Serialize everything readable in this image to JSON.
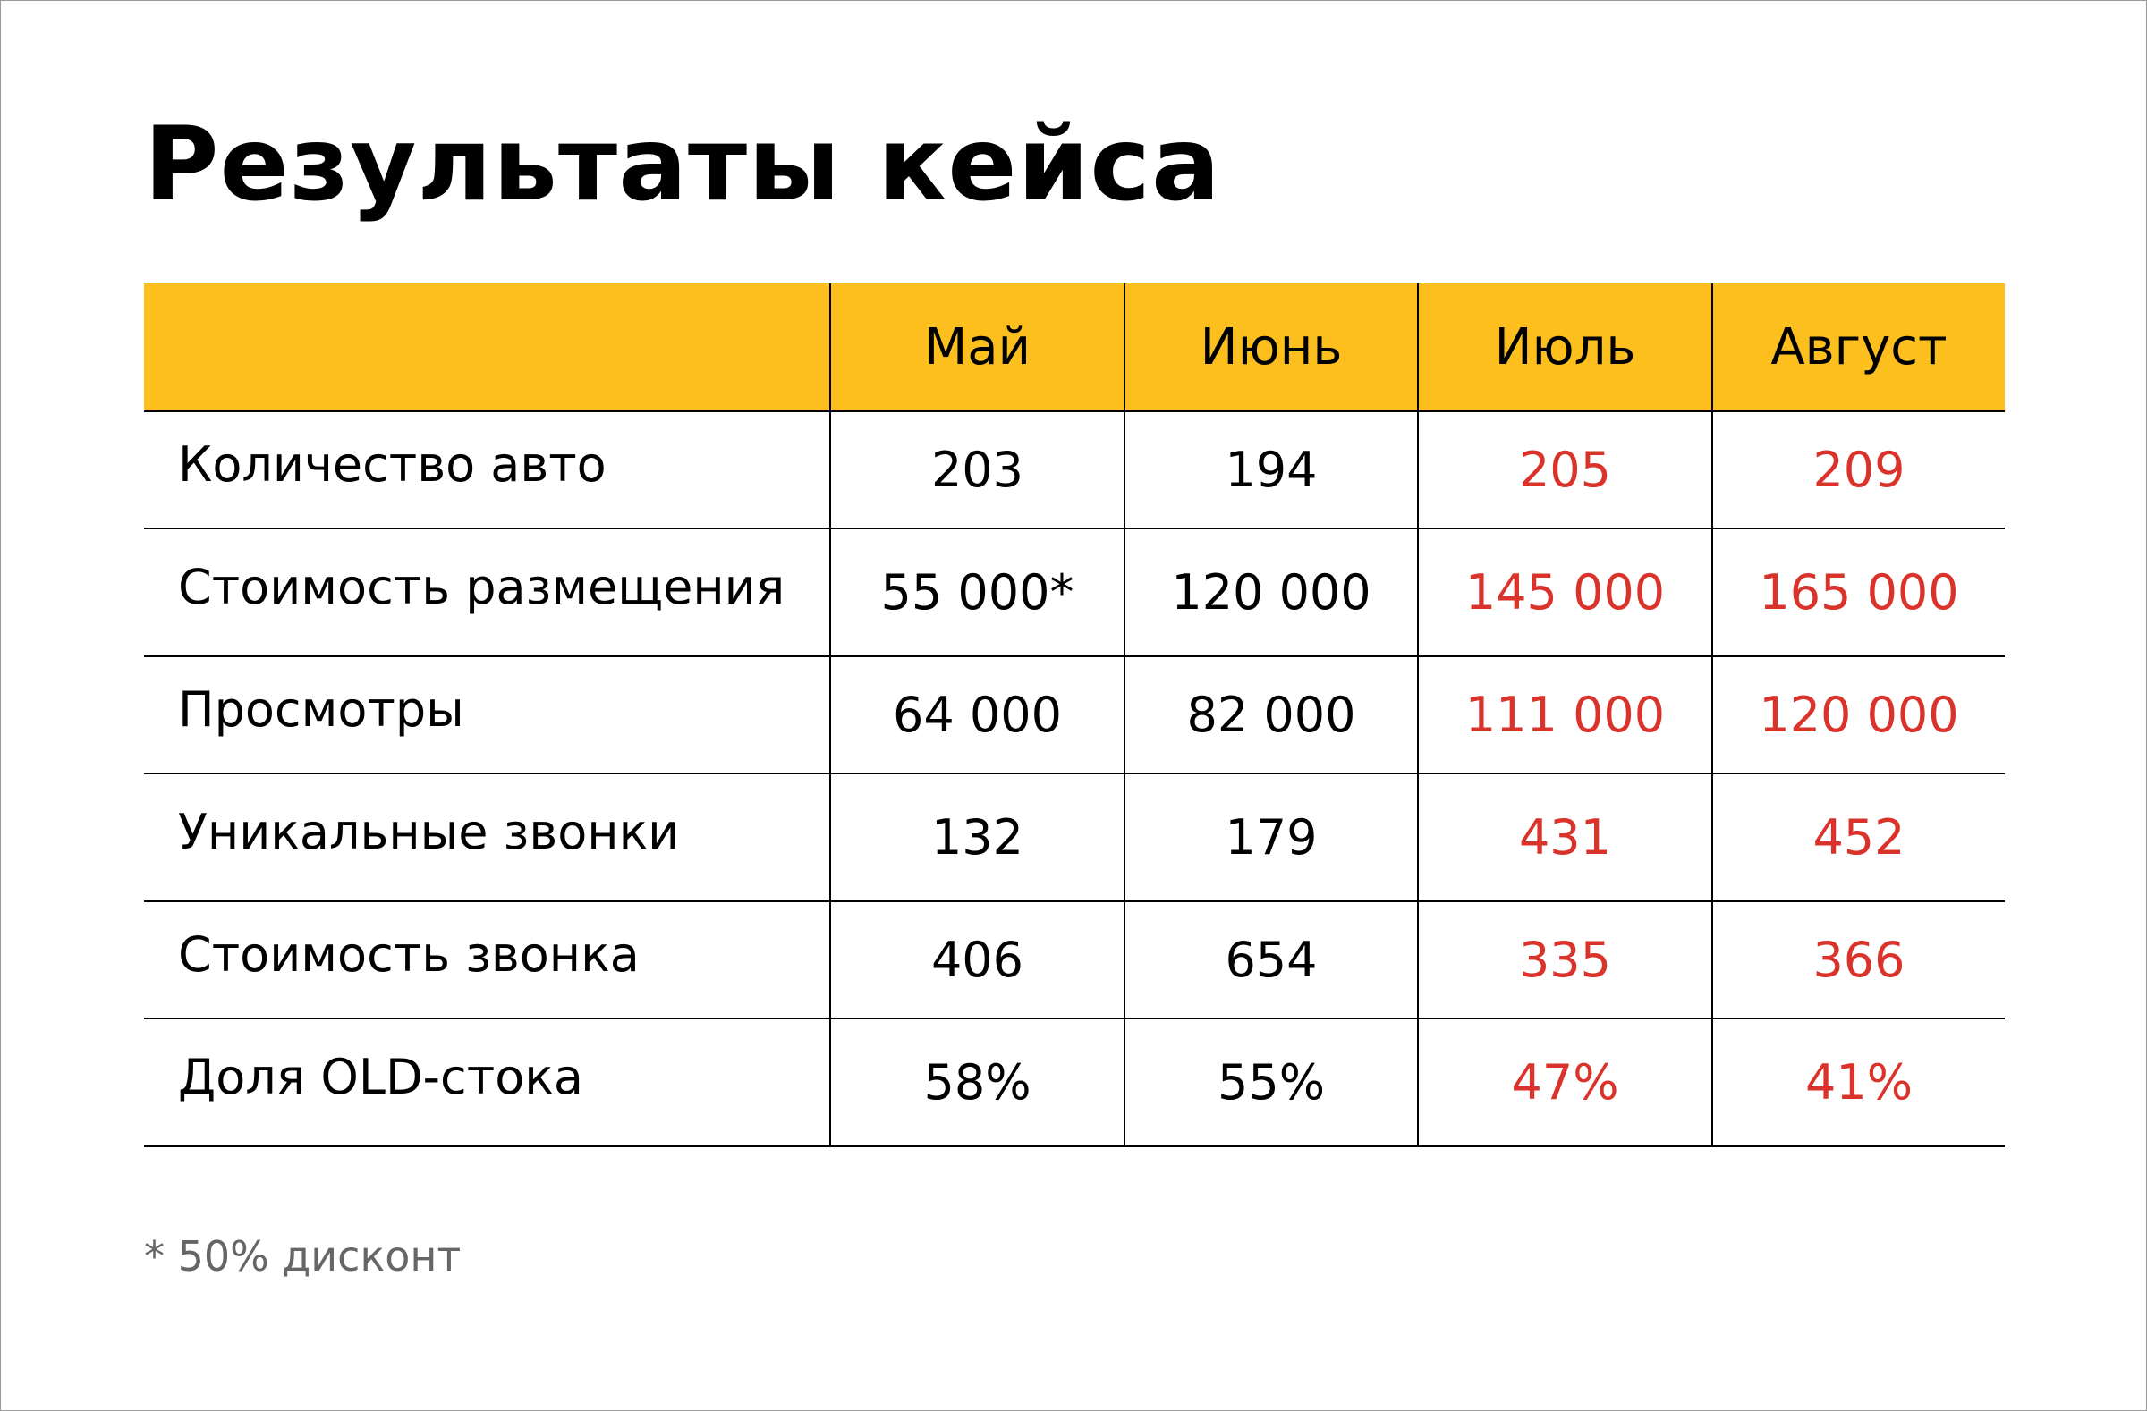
{
  "title": "Результаты кейса",
  "table": {
    "columns": [
      "",
      "Май",
      "Июнь",
      "Июль",
      "Август"
    ],
    "rows": [
      {
        "label": "Количество авто",
        "values": [
          "203",
          "194",
          "205",
          "209"
        ]
      },
      {
        "label": "Стоимость размещения",
        "values": [
          "55 000*",
          "120 000",
          "145 000",
          "165 000"
        ]
      },
      {
        "label": "Просмотры",
        "values": [
          "64 000",
          "82 000",
          "111 000",
          "120 000"
        ]
      },
      {
        "label": "Уникальные звонки",
        "values": [
          "132",
          "179",
          "431",
          "452"
        ]
      },
      {
        "label": "Стоимость звонка",
        "values": [
          "406",
          "654",
          "335",
          "366"
        ]
      },
      {
        "label": "Доля OLD-стока",
        "values": [
          "58%",
          "55%",
          "47%",
          "41%"
        ]
      }
    ]
  },
  "footnote": "* 50% дисконт",
  "colors": {
    "header_background": "#fcbf1e",
    "highlight_text": "#d9332b",
    "footnote_text": "#666666"
  }
}
